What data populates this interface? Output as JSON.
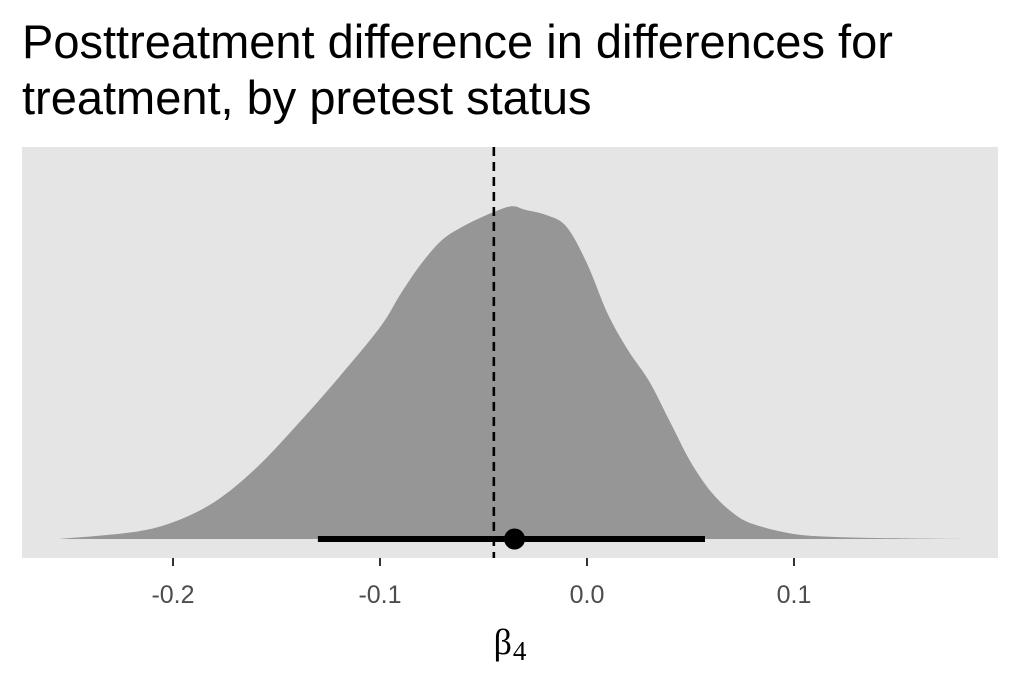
{
  "title_lines": [
    "Posttreatment difference in differences for",
    "treatment, by pretest status"
  ],
  "chart_data": {
    "type": "area",
    "title": "Posttreatment difference in differences for treatment, by pretest status",
    "xlabel": "β4",
    "xlabel_main": "β",
    "xlabel_sub": "4",
    "ylabel": "",
    "xlim": [
      -0.245,
      0.2
    ],
    "x_ticks": [
      -0.2,
      -0.1,
      0.0,
      0.1
    ],
    "x_tick_labels": [
      "-0.2",
      "-0.1",
      "0.0",
      "0.1"
    ],
    "grid": false,
    "density": {
      "x": [
        -0.255,
        -0.22,
        -0.2,
        -0.18,
        -0.16,
        -0.14,
        -0.12,
        -0.1,
        -0.09,
        -0.08,
        -0.07,
        -0.06,
        -0.05,
        -0.04,
        -0.035,
        -0.03,
        -0.02,
        -0.01,
        0.0,
        0.01,
        0.02,
        0.03,
        0.04,
        0.05,
        0.06,
        0.07,
        0.08,
        0.1,
        0.12,
        0.15,
        0.18
      ],
      "y": [
        0.0,
        0.02,
        0.05,
        0.11,
        0.21,
        0.34,
        0.48,
        0.63,
        0.73,
        0.82,
        0.89,
        0.93,
        0.96,
        0.985,
        0.99,
        0.98,
        0.965,
        0.93,
        0.82,
        0.67,
        0.56,
        0.47,
        0.35,
        0.23,
        0.14,
        0.08,
        0.045,
        0.015,
        0.006,
        0.002,
        0.0
      ]
    },
    "point_estimate": -0.035,
    "interval": [
      -0.13,
      0.057
    ],
    "reference_line": -0.045,
    "colors": {
      "panel": "#e5e5e5",
      "density_fill": "#969696",
      "interval": "#000000",
      "reference_line": "#000000",
      "tick": "#333333"
    }
  }
}
